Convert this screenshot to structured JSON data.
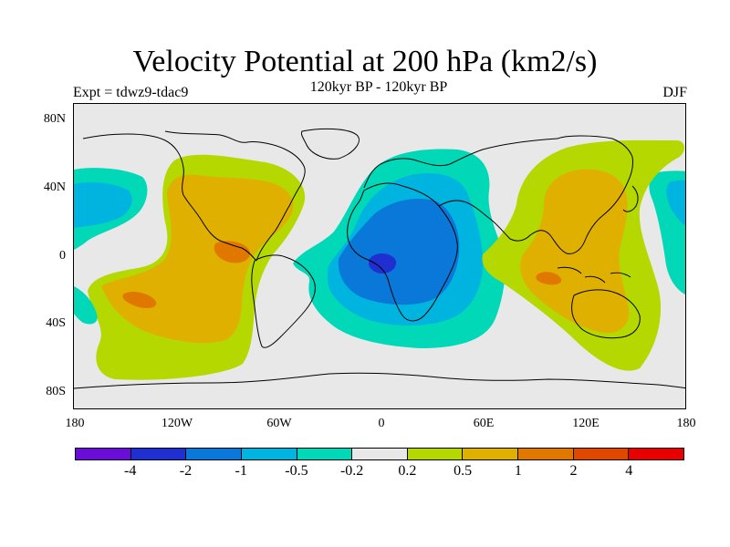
{
  "title": "Velocity Potential at 200 hPa (km2/s)",
  "subtitle": "120kyr BP - 120kyr BP",
  "left_label": "Expt = tdwz9-tdac9",
  "right_label": "DJF",
  "lat_labels": [
    "80N",
    "40N",
    "0",
    "40S",
    "80S"
  ],
  "lon_labels": [
    "180",
    "120W",
    "60W",
    "0",
    "60E",
    "120E",
    "180"
  ],
  "colorbar": {
    "colors": [
      "#6a0dd8",
      "#2030d0",
      "#0a78d8",
      "#00b4e0",
      "#00d8b8",
      "#e8e8e8",
      "#b4d800",
      "#e0b000",
      "#e07800",
      "#e04800",
      "#e80000"
    ],
    "labels": [
      "-4",
      "-2",
      "-1",
      "-0.5",
      "-0.2",
      "0.2",
      "0.5",
      "1",
      "2",
      "4"
    ]
  },
  "colors": {
    "background": "#ffffff",
    "neutral": "#e8e8e8",
    "coastline": "#000000"
  }
}
